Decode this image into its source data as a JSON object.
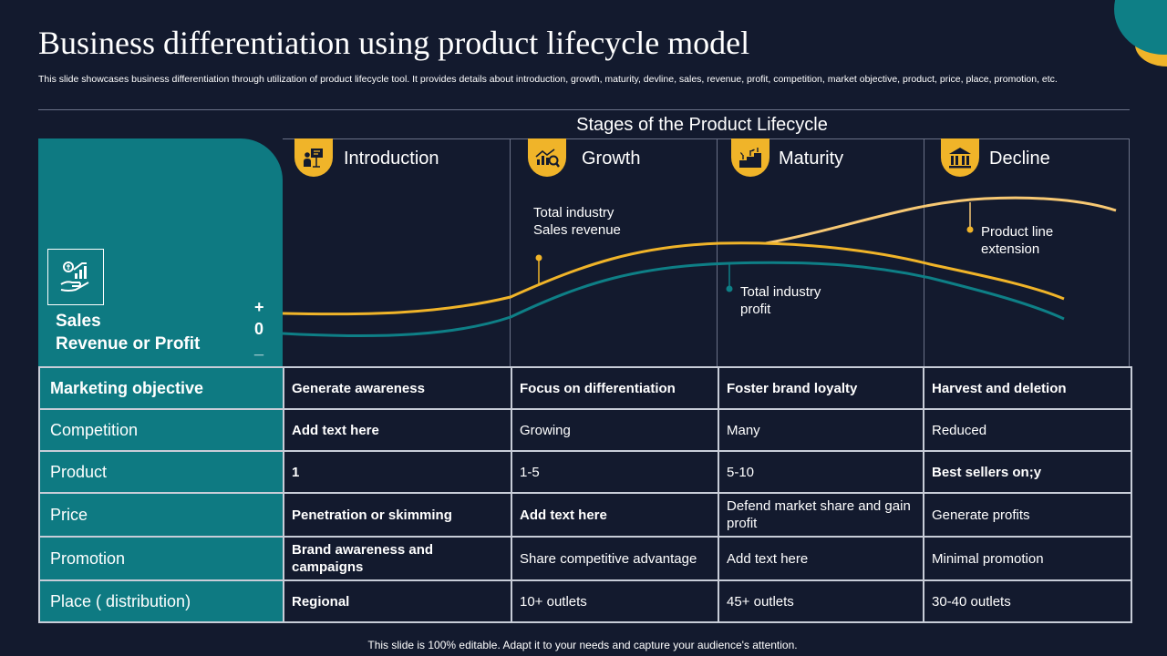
{
  "header": {
    "title": "Business differentiation using product lifecycle model",
    "subtitle": "This slide showcases business differentiation through utilization of product lifecycle tool. It provides details about introduction, growth, maturity, devline, sales, revenue, profit, competition, market objective, product, price, place, promotion, etc."
  },
  "diagram": {
    "heading": "Stages of the Product Lifecycle",
    "y_axis_label_line1": "Sales",
    "y_axis_label_line2": "Revenue or Profit",
    "axis_symbols": {
      "plus": "+",
      "zero": "0",
      "minus": "_"
    },
    "stages": [
      {
        "name": "Introduction",
        "icon": "presentation-icon"
      },
      {
        "name": "Growth",
        "icon": "growth-chart-icon"
      },
      {
        "name": "Maturity",
        "icon": "plant-growth-icon"
      },
      {
        "name": "Decline",
        "icon": "bar-chart-icon"
      }
    ],
    "annotations": {
      "sales_revenue_line1": "Total industry",
      "sales_revenue_line2": "Sales revenue",
      "profit_line1": "Total industry",
      "profit_line2": "profit",
      "extension_line1": "Product line",
      "extension_line2": "extension"
    },
    "colors": {
      "sales_curve": "#f0b429",
      "profit_curve": "#0e7f86",
      "extension_curve": "#f7c873"
    }
  },
  "table": {
    "rows": [
      {
        "label": "Marketing objective",
        "cells": [
          "Generate awareness",
          "Focus on differentiation",
          "Foster brand loyalty",
          "Harvest and deletion"
        ]
      },
      {
        "label": "Competition",
        "cells": [
          "Add text here",
          "Growing",
          "Many",
          "Reduced"
        ]
      },
      {
        "label": "Product",
        "cells": [
          "1",
          "1-5",
          "5-10",
          "Best sellers on;y"
        ]
      },
      {
        "label": "Price",
        "cells": [
          "Penetration or skimming",
          "Add text here",
          "Defend market share and gain profit",
          "Generate profits"
        ]
      },
      {
        "label": "Promotion",
        "cells": [
          "Brand awareness and campaigns",
          "Share competitive advantage",
          "Add text here",
          "Minimal promotion"
        ]
      },
      {
        "label": "Place ( distribution)",
        "cells": [
          "Regional",
          "10+ outlets",
          "45+ outlets",
          "30-40 outlets"
        ]
      }
    ]
  },
  "footer": {
    "text": "This slide is 100% editable. Adapt it to your needs and capture your audience's attention."
  },
  "theme": {
    "background": "#131a2e",
    "teal": "#0e7a82",
    "accent": "#f0b429"
  }
}
